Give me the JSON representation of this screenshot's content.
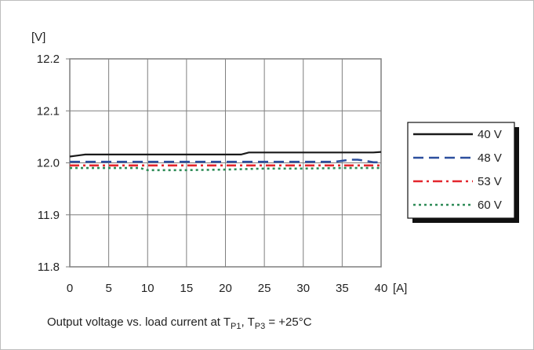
{
  "chart_data": {
    "type": "line",
    "ylabel": "[V]",
    "xlabel": "[A]",
    "caption": {
      "prefix": "Output voltage vs. load current at T",
      "sub1": "P1",
      "mid": ", T",
      "sub2": "P3",
      "suffix": " = +25°C"
    },
    "xlim": [
      0,
      40
    ],
    "ylim": [
      11.8,
      12.2
    ],
    "x_ticks": [
      "0",
      "5",
      "10",
      "15",
      "20",
      "25",
      "30",
      "35",
      "40"
    ],
    "y_ticks": [
      "11.8",
      "11.9",
      "12.0",
      "12.1",
      "12.2"
    ],
    "grid": true,
    "legend_position": "right",
    "series": [
      {
        "name": "40 V",
        "color": "#1a1a1a",
        "dash": "solid",
        "x": [
          0,
          1,
          2,
          5,
          10,
          15,
          20,
          22,
          23,
          25,
          30,
          35,
          39,
          40
        ],
        "y": [
          12.012,
          12.014,
          12.016,
          12.016,
          12.016,
          12.016,
          12.016,
          12.016,
          12.02,
          12.02,
          12.02,
          12.02,
          12.02,
          12.021
        ]
      },
      {
        "name": "48 V",
        "color": "#2c4f9e",
        "dash": "dashed",
        "x": [
          0,
          5,
          10,
          15,
          20,
          25,
          30,
          34,
          35,
          36,
          37,
          38,
          39,
          40
        ],
        "y": [
          12.002,
          12.002,
          12.002,
          12.002,
          12.002,
          12.002,
          12.002,
          12.002,
          12.004,
          12.006,
          12.006,
          12.004,
          12.001,
          12.001
        ]
      },
      {
        "name": "53 V",
        "color": "#e3262d",
        "dash": "dashdot",
        "x": [
          0,
          5,
          10,
          15,
          20,
          25,
          30,
          35,
          40
        ],
        "y": [
          11.995,
          11.995,
          11.995,
          11.995,
          11.995,
          11.995,
          11.995,
          11.995,
          11.995
        ]
      },
      {
        "name": "60 V",
        "color": "#2e8b57",
        "dash": "dotted",
        "x": [
          0,
          5,
          9,
          10,
          15,
          20,
          25,
          30,
          35,
          40
        ],
        "y": [
          11.99,
          11.99,
          11.99,
          11.986,
          11.986,
          11.987,
          11.989,
          11.989,
          11.99,
          11.99
        ]
      }
    ]
  }
}
